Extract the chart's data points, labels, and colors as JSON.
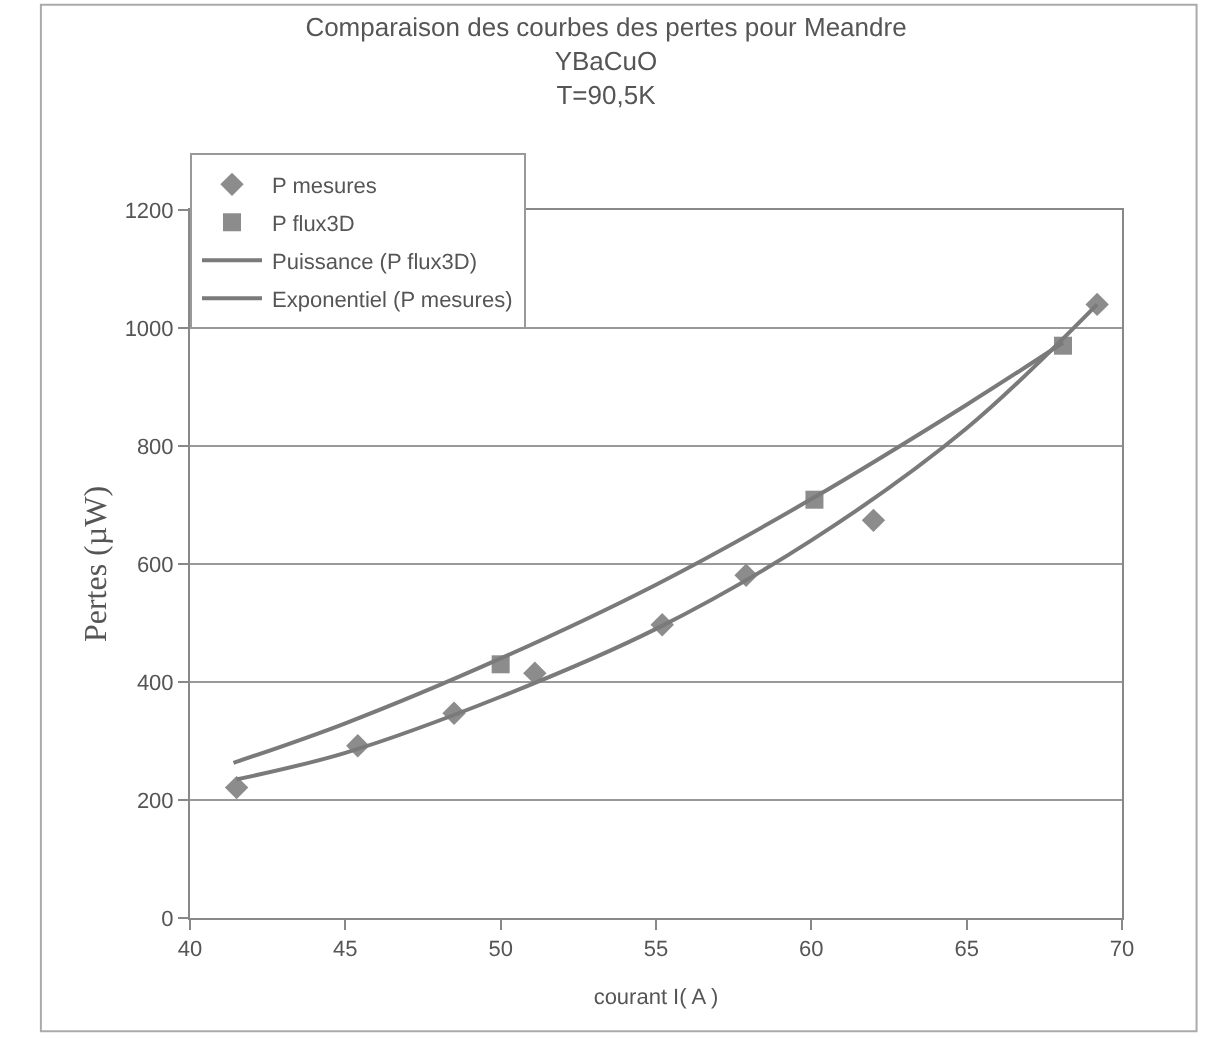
{
  "chart_data": {
    "type": "scatter",
    "title": "Comparaison des courbes des pertes pour Meandre\nYBaCuO\nT=90,5K",
    "xlabel": "courant I( A )",
    "ylabel": "Pertes (µW)",
    "xlim": [
      40,
      70
    ],
    "xticks": [
      40,
      45,
      50,
      55,
      60,
      65,
      70
    ],
    "ylim": [
      0,
      1200
    ],
    "yticks": [
      0,
      200,
      400,
      600,
      800,
      1000,
      1200
    ],
    "grid": "y",
    "legend": "top left",
    "series": [
      {
        "name": "P mesures",
        "marker": "diamond",
        "color": "#8c8c8c",
        "x": [
          41.5,
          45.4,
          48.5,
          51.1,
          55.2,
          57.9,
          62.0,
          69.2
        ],
        "values": [
          221,
          292,
          347,
          415,
          497,
          581,
          674,
          1040
        ]
      },
      {
        "name": "P flux3D",
        "marker": "square",
        "color": "#8c8c8c",
        "x": [
          50.0,
          60.1,
          68.1
        ],
        "values": [
          430,
          709,
          970
        ]
      },
      {
        "name": "Puissance (P flux3D)",
        "type": "line",
        "marker": "none",
        "line_style": "solid",
        "color": "#7a7a7a",
        "x": [
          41.4,
          45,
          50,
          55,
          60,
          65,
          68.1
        ],
        "values": [
          263,
          330,
          440,
          565,
          710,
          870,
          975
        ]
      },
      {
        "name": "Exponentiel (P mesures)",
        "type": "line",
        "marker": "none",
        "line_style": "solid",
        "color": "#7a7a7a",
        "x": [
          41.5,
          45,
          50,
          55,
          60,
          65,
          69.2
        ],
        "values": [
          235,
          280,
          375,
          490,
          640,
          830,
          1040
        ]
      }
    ]
  }
}
